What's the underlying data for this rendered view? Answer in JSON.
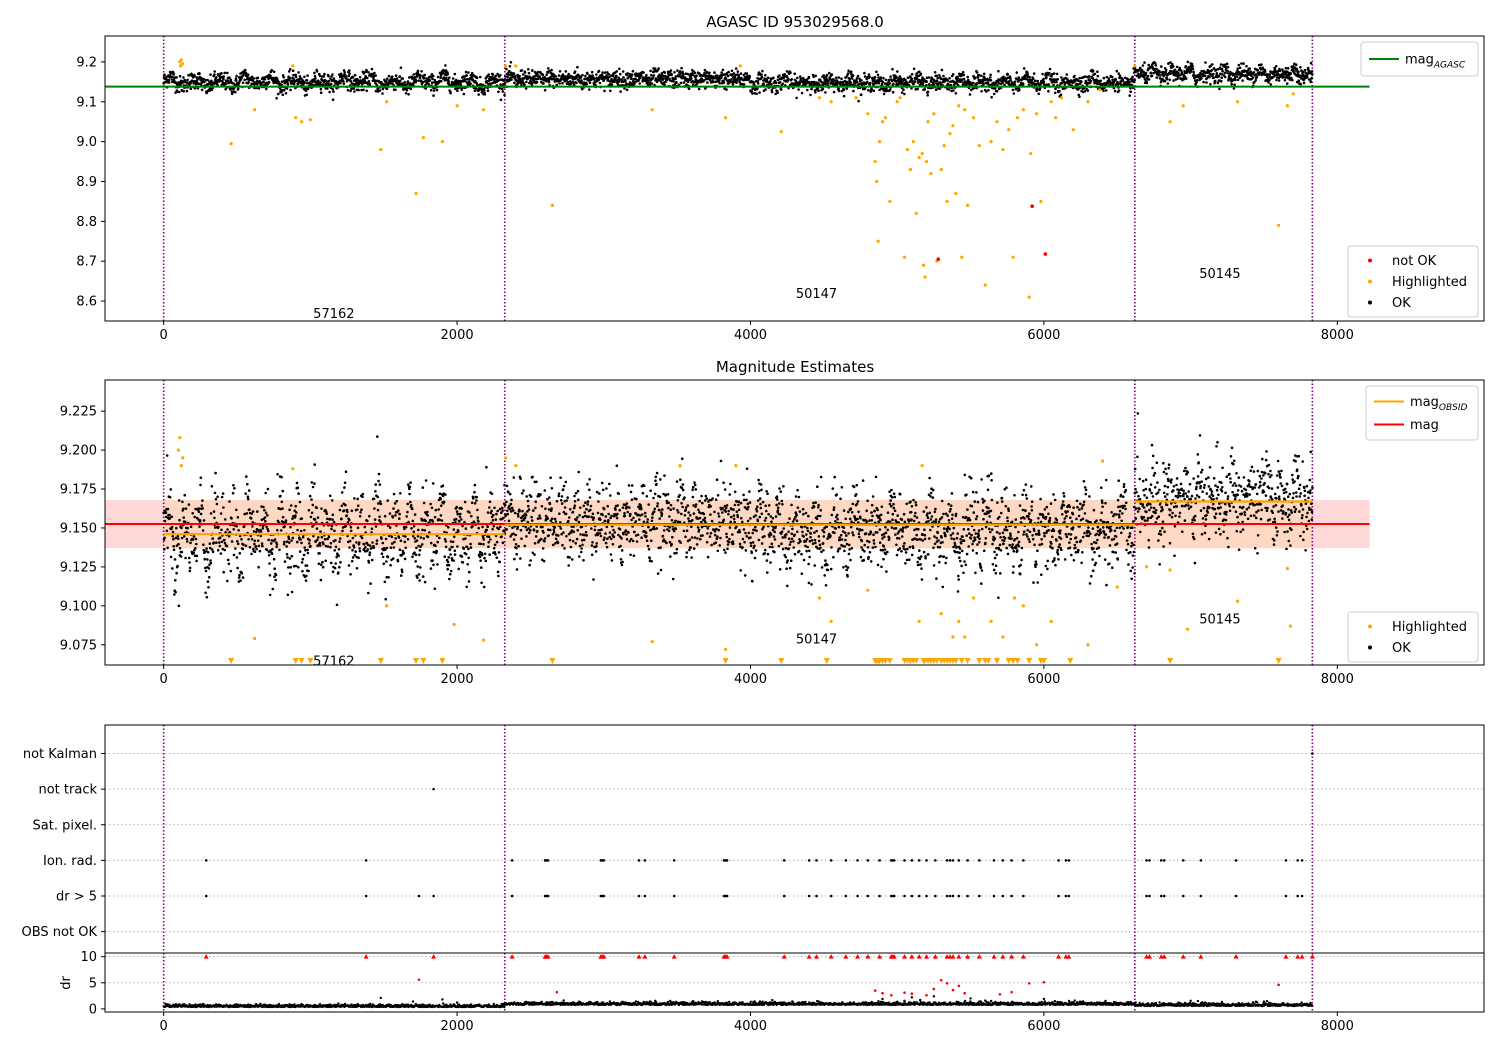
{
  "colors": {
    "ok": "#000000",
    "highlighted": "#ffa500",
    "not_ok": "#ff0000",
    "mag_agasc": "#008000",
    "mag_obsid": "#ffa500",
    "mag": "#ff0000",
    "obs_boundary": "#800080",
    "mag_band": "#ffc0c0"
  },
  "chart_data": [
    {
      "id": "top",
      "type": "scatter",
      "title": "AGASC ID 953029568.0",
      "xlim": [
        -400,
        9000
      ],
      "ylim": [
        8.55,
        9.265
      ],
      "xticks": [
        0,
        2000,
        4000,
        6000,
        8000
      ],
      "yticks": [
        8.6,
        8.7,
        8.8,
        8.9,
        9.0,
        9.1,
        9.2
      ],
      "ytick_labels": [
        "8.6",
        "8.7",
        "8.8",
        "8.9",
        "9.0",
        "9.1",
        "9.2"
      ],
      "obs_boundaries": [
        0,
        2325,
        6620,
        7830
      ],
      "obsid_labels": [
        {
          "text": "57162",
          "x": 1160,
          "y": 8.57
        },
        {
          "text": "50147",
          "x": 4450,
          "y": 8.62
        },
        {
          "text": "50145",
          "x": 7200,
          "y": 8.67
        }
      ],
      "mag_agasc": {
        "value": 9.138,
        "x": [
          -400,
          8220
        ]
      },
      "ok_segments": [
        {
          "x": [
            0,
            2325
          ],
          "base": 9.15,
          "amp": 0.015,
          "period": 170
        },
        {
          "x": [
            2325,
            4000
          ],
          "base": 9.157,
          "amp": 0.008,
          "period": 90
        },
        {
          "x": [
            4000,
            6620
          ],
          "base": 9.148,
          "amp": 0.012,
          "period": 150
        },
        {
          "x": [
            6620,
            7830
          ],
          "base": 9.17,
          "amp": 0.012,
          "period": 120
        }
      ],
      "highlighted": [
        [
          110,
          9.2
        ],
        [
          115,
          9.19
        ],
        [
          120,
          9.205
        ],
        [
          130,
          9.195
        ],
        [
          460,
          8.995
        ],
        [
          620,
          9.08
        ],
        [
          880,
          9.19
        ],
        [
          900,
          9.06
        ],
        [
          940,
          9.05
        ],
        [
          1000,
          9.055
        ],
        [
          1480,
          8.98
        ],
        [
          1520,
          9.1
        ],
        [
          1720,
          8.87
        ],
        [
          1770,
          9.01
        ],
        [
          1900,
          9.0
        ],
        [
          2000,
          9.09
        ],
        [
          2180,
          9.08
        ],
        [
          2330,
          9.19
        ],
        [
          2400,
          9.19
        ],
        [
          2650,
          8.84
        ],
        [
          3330,
          9.08
        ],
        [
          3830,
          9.06
        ],
        [
          3930,
          9.19
        ],
        [
          4210,
          9.025
        ],
        [
          4470,
          9.11
        ],
        [
          4550,
          9.1
        ],
        [
          4720,
          9.11
        ],
        [
          4800,
          9.07
        ],
        [
          4850,
          8.95
        ],
        [
          4860,
          8.9
        ],
        [
          4870,
          8.75
        ],
        [
          4880,
          9.0
        ],
        [
          4900,
          9.05
        ],
        [
          4920,
          9.06
        ],
        [
          4950,
          8.85
        ],
        [
          5000,
          9.1
        ],
        [
          5020,
          9.11
        ],
        [
          5050,
          8.71
        ],
        [
          5070,
          8.98
        ],
        [
          5090,
          8.93
        ],
        [
          5110,
          9.0
        ],
        [
          5130,
          8.82
        ],
        [
          5150,
          8.96
        ],
        [
          5170,
          8.97
        ],
        [
          5180,
          8.69
        ],
        [
          5190,
          8.66
        ],
        [
          5200,
          8.95
        ],
        [
          5210,
          9.05
        ],
        [
          5230,
          8.92
        ],
        [
          5250,
          9.07
        ],
        [
          5270,
          8.7
        ],
        [
          5300,
          8.93
        ],
        [
          5320,
          8.99
        ],
        [
          5340,
          8.85
        ],
        [
          5360,
          9.02
        ],
        [
          5380,
          9.04
        ],
        [
          5400,
          8.87
        ],
        [
          5420,
          9.09
        ],
        [
          5440,
          8.71
        ],
        [
          5460,
          9.08
        ],
        [
          5480,
          8.84
        ],
        [
          5520,
          9.06
        ],
        [
          5560,
          8.99
        ],
        [
          5600,
          8.64
        ],
        [
          5640,
          9.0
        ],
        [
          5680,
          9.05
        ],
        [
          5720,
          8.98
        ],
        [
          5760,
          9.03
        ],
        [
          5790,
          8.71
        ],
        [
          5820,
          9.06
        ],
        [
          5860,
          9.08
        ],
        [
          5900,
          8.61
        ],
        [
          5910,
          8.97
        ],
        [
          5950,
          9.07
        ],
        [
          5980,
          8.85
        ],
        [
          6050,
          9.1
        ],
        [
          6080,
          9.06
        ],
        [
          6120,
          9.11
        ],
        [
          6200,
          9.03
        ],
        [
          6300,
          9.1
        ],
        [
          6380,
          9.13
        ],
        [
          6620,
          9.19
        ],
        [
          6860,
          9.05
        ],
        [
          6950,
          9.09
        ],
        [
          7320,
          9.1
        ],
        [
          7600,
          8.79
        ],
        [
          7660,
          9.09
        ],
        [
          7700,
          9.12
        ]
      ],
      "not_ok": [
        [
          5280,
          8.705
        ],
        [
          5920,
          8.838
        ],
        [
          6010,
          8.718
        ]
      ],
      "legends": [
        {
          "position": "upper right",
          "items": [
            {
              "kind": "line",
              "color": "#008000",
              "label": "mag",
              "sub": "AGASC"
            }
          ]
        },
        {
          "position": "lower right",
          "items": [
            {
              "kind": "dot",
              "color": "#ff0000",
              "label": "not OK"
            },
            {
              "kind": "dot",
              "color": "#ffa500",
              "label": "Highlighted"
            },
            {
              "kind": "dot",
              "color": "#000000",
              "label": "OK"
            }
          ]
        }
      ]
    },
    {
      "id": "middle",
      "type": "scatter",
      "title": "Magnitude Estimates",
      "xlim": [
        -400,
        9000
      ],
      "ylim": [
        9.062,
        9.245
      ],
      "xticks": [
        0,
        2000,
        4000,
        6000,
        8000
      ],
      "yticks": [
        9.075,
        9.1,
        9.125,
        9.15,
        9.175,
        9.2,
        9.225
      ],
      "ytick_labels": [
        "9.075",
        "9.100",
        "9.125",
        "9.150",
        "9.175",
        "9.200",
        "9.225"
      ],
      "obs_boundaries": [
        0,
        2325,
        6620,
        7830
      ],
      "obsid_labels": [
        {
          "text": "57162",
          "x": 1160,
          "y": 9.065
        },
        {
          "text": "50147",
          "x": 4450,
          "y": 9.079
        },
        {
          "text": "50145",
          "x": 7200,
          "y": 9.092
        }
      ],
      "mag": {
        "value": 9.1525,
        "x": [
          -400,
          8220
        ],
        "band": [
          9.137,
          9.168
        ]
      },
      "mag_obsid": [
        {
          "x": [
            0,
            2325
          ],
          "value": 9.146
        },
        {
          "x": [
            2325,
            6620
          ],
          "value": 9.152
        },
        {
          "x": [
            6620,
            7830
          ],
          "value": 9.167
        }
      ],
      "ok_segments": [
        {
          "x": [
            0,
            2325
          ],
          "base": 9.146,
          "amp": 0.02,
          "period": 110
        },
        {
          "x": [
            2325,
            4000
          ],
          "base": 9.155,
          "amp": 0.01,
          "period": 90
        },
        {
          "x": [
            4000,
            6620
          ],
          "base": 9.148,
          "amp": 0.014,
          "period": 130
        },
        {
          "x": [
            6620,
            7830
          ],
          "base": 9.168,
          "amp": 0.012,
          "period": 110
        }
      ],
      "highlighted": [
        [
          100,
          9.2
        ],
        [
          110,
          9.208
        ],
        [
          120,
          9.19
        ],
        [
          130,
          9.195
        ],
        [
          620,
          9.079
        ],
        [
          880,
          9.188
        ],
        [
          1520,
          9.1
        ],
        [
          1980,
          9.088
        ],
        [
          2180,
          9.078
        ],
        [
          2330,
          9.195
        ],
        [
          2400,
          9.19
        ],
        [
          3330,
          9.077
        ],
        [
          3520,
          9.19
        ],
        [
          3830,
          9.072
        ],
        [
          3900,
          9.19
        ],
        [
          4470,
          9.105
        ],
        [
          4550,
          9.09
        ],
        [
          4800,
          9.11
        ],
        [
          5150,
          9.09
        ],
        [
          5170,
          9.19
        ],
        [
          5300,
          9.095
        ],
        [
          5380,
          9.08
        ],
        [
          5420,
          9.09
        ],
        [
          5460,
          9.08
        ],
        [
          5520,
          9.105
        ],
        [
          5640,
          9.09
        ],
        [
          5720,
          9.08
        ],
        [
          5800,
          9.105
        ],
        [
          5860,
          9.1
        ],
        [
          5950,
          9.075
        ],
        [
          6050,
          9.09
        ],
        [
          6300,
          9.075
        ],
        [
          6400,
          9.193
        ],
        [
          6500,
          9.112
        ],
        [
          6700,
          9.125
        ],
        [
          6860,
          9.123
        ],
        [
          6980,
          9.085
        ],
        [
          7320,
          9.103
        ],
        [
          7660,
          9.124
        ],
        [
          7680,
          9.087
        ]
      ],
      "below_range_x": [
        460,
        900,
        940,
        1000,
        1480,
        1720,
        1770,
        1900,
        2650,
        3830,
        4210,
        4520,
        4850,
        4860,
        4870,
        4880,
        4900,
        4920,
        4950,
        5050,
        5070,
        5090,
        5110,
        5130,
        5180,
        5190,
        5210,
        5230,
        5250,
        5270,
        5300,
        5320,
        5340,
        5360,
        5380,
        5400,
        5440,
        5480,
        5560,
        5600,
        5620,
        5680,
        5760,
        5790,
        5820,
        5900,
        5980,
        6000,
        6180,
        6860,
        7600
      ],
      "legends": [
        {
          "position": "upper right",
          "items": [
            {
              "kind": "line",
              "color": "#ffa500",
              "label": "mag",
              "sub": "OBSID"
            },
            {
              "kind": "line",
              "color": "#ff0000",
              "label": "mag",
              "sub": ""
            }
          ]
        },
        {
          "position": "lower right",
          "items": [
            {
              "kind": "dot",
              "color": "#ffa500",
              "label": "Highlighted"
            },
            {
              "kind": "dot",
              "color": "#000000",
              "label": "OK"
            }
          ]
        }
      ]
    },
    {
      "id": "flags",
      "type": "scatter",
      "xlim": [
        -400,
        9000
      ],
      "ylim": [
        -0.6,
        5.8
      ],
      "obs_boundaries": [
        0,
        2325,
        6620,
        7830
      ],
      "categories": [
        "not Kalman",
        "not track",
        "Sat. pixel.",
        "Ion. rad.",
        "dr > 5",
        "OBS not OK"
      ],
      "category_levels": [
        5,
        4,
        3,
        2,
        1,
        0
      ],
      "events": {
        "not Kalman": [
          7830
        ],
        "not track": [
          1840
        ],
        "Sat. pixel.": [],
        "Ion. rad.": [
          290,
          1380,
          2375,
          2600,
          2610,
          2620,
          2980,
          2990,
          3000,
          3240,
          3280,
          3480,
          3820,
          3830,
          3840,
          4230,
          4400,
          4450,
          4550,
          4650,
          4730,
          4800,
          4880,
          4960,
          4970,
          4980,
          5050,
          5100,
          5150,
          5200,
          5260,
          5340,
          5360,
          5380,
          5420,
          5480,
          5560,
          5660,
          5720,
          5780,
          5860,
          6100,
          6150,
          6170,
          6700,
          6720,
          6800,
          6820,
          6950,
          7070,
          7310,
          7650,
          7730,
          7760
        ],
        "dr > 5": [
          290,
          1380,
          1740,
          1840,
          2375,
          2600,
          2610,
          2620,
          2980,
          2990,
          3000,
          3240,
          3280,
          3480,
          3820,
          3830,
          3840,
          4230,
          4400,
          4450,
          4550,
          4650,
          4730,
          4800,
          4880,
          4960,
          4970,
          4980,
          5050,
          5100,
          5150,
          5200,
          5260,
          5340,
          5360,
          5380,
          5420,
          5480,
          5560,
          5660,
          5720,
          5780,
          5860,
          6100,
          6150,
          6170,
          6700,
          6720,
          6800,
          6820,
          6950,
          7070,
          7310,
          7650,
          7730,
          7760
        ],
        "OBS not OK": []
      }
    },
    {
      "id": "dr",
      "type": "scatter",
      "ylabel": "dr",
      "xlim": [
        -400,
        9000
      ],
      "ylim": [
        -0.6,
        10.7
      ],
      "xticks": [
        0,
        2000,
        4000,
        6000,
        8000
      ],
      "yticks": [
        0,
        5,
        10
      ],
      "ytick_labels": [
        "0",
        "5",
        "10"
      ],
      "obs_boundaries": [
        0,
        2325,
        6620,
        7830
      ],
      "ok_segments": [
        {
          "x": [
            0,
            2325
          ],
          "base": 0.5,
          "amp": 0.3,
          "period": 60
        },
        {
          "x": [
            2325,
            6620
          ],
          "base": 0.9,
          "amp": 0.35,
          "period": 60
        },
        {
          "x": [
            6620,
            7830
          ],
          "base": 0.7,
          "amp": 0.35,
          "period": 60
        }
      ],
      "ok_extra": [
        [
          1480,
          2.1
        ],
        [
          1700,
          1.4
        ],
        [
          1900,
          1.8
        ],
        [
          2000,
          1.2
        ],
        [
          4900,
          1.9
        ],
        [
          5100,
          2.2
        ],
        [
          5250,
          2.4
        ],
        [
          5500,
          2.0
        ],
        [
          5600,
          1.6
        ],
        [
          6000,
          1.9
        ],
        [
          7050,
          1.5
        ],
        [
          7500,
          1.4
        ]
      ],
      "clipped_x": [
        290,
        1380,
        1840,
        2375,
        2600,
        2610,
        2620,
        2980,
        2990,
        3000,
        3240,
        3280,
        3480,
        3820,
        3830,
        3840,
        4230,
        4400,
        4450,
        4550,
        4650,
        4730,
        4800,
        4880,
        4960,
        4970,
        4980,
        5050,
        5100,
        5150,
        5200,
        5260,
        5340,
        5360,
        5380,
        5420,
        5480,
        5560,
        5660,
        5720,
        5780,
        5860,
        6100,
        6150,
        6170,
        6700,
        6720,
        6800,
        6820,
        6950,
        7070,
        7310,
        7650,
        7730,
        7760,
        7830
      ],
      "red_points": [
        [
          1740,
          5.6
        ],
        [
          2680,
          3.2
        ],
        [
          4850,
          3.5
        ],
        [
          4900,
          3.0
        ],
        [
          4960,
          2.6
        ],
        [
          5050,
          3.1
        ],
        [
          5100,
          2.9
        ],
        [
          5200,
          2.6
        ],
        [
          5250,
          3.8
        ],
        [
          5300,
          5.5
        ],
        [
          5340,
          4.9
        ],
        [
          5380,
          3.6
        ],
        [
          5420,
          4.4
        ],
        [
          5460,
          3.0
        ],
        [
          5700,
          2.8
        ],
        [
          5780,
          3.2
        ],
        [
          5900,
          4.9
        ],
        [
          6000,
          5.1
        ],
        [
          7600,
          4.6
        ]
      ]
    }
  ]
}
